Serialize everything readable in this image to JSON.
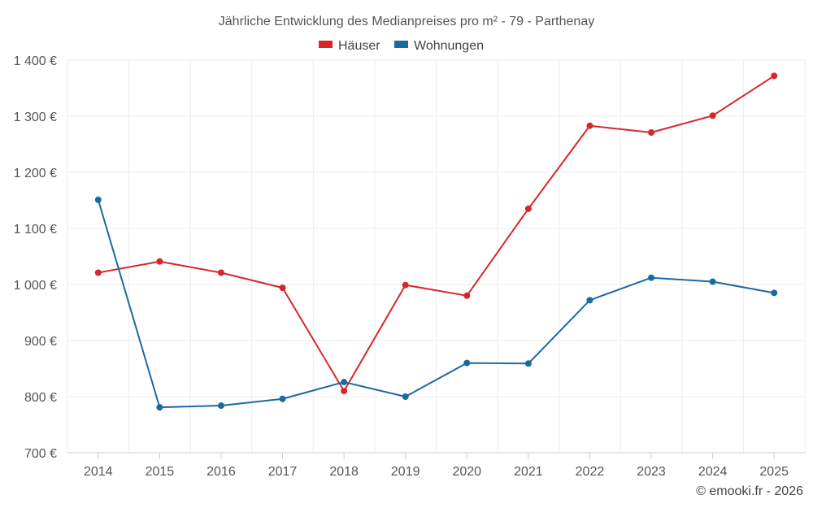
{
  "chart_data": {
    "type": "line",
    "title": "Jährliche Entwicklung des Medianpreises pro m² - 79 - Parthenay",
    "categories": [
      "2014",
      "2015",
      "2016",
      "2017",
      "2018",
      "2019",
      "2020",
      "2021",
      "2022",
      "2023",
      "2024",
      "2025"
    ],
    "series": [
      {
        "name": "Häuser",
        "color": "#d62728",
        "values": [
          1021,
          1041,
          1021,
          994,
          810,
          999,
          980,
          1135,
          1283,
          1271,
          1301,
          1372
        ]
      },
      {
        "name": "Wohnungen",
        "color": "#1a6aa0",
        "values": [
          1151,
          781,
          784,
          796,
          826,
          800,
          860,
          859,
          972,
          1012,
          1005,
          985
        ]
      }
    ],
    "ylim": [
      700,
      1400
    ],
    "yticks": [
      700,
      800,
      900,
      1000,
      1100,
      1200,
      1300,
      1400
    ],
    "ytick_labels": [
      "700 €",
      "800 €",
      "900 €",
      "1 000 €",
      "1 100 €",
      "1 200 €",
      "1 300 €",
      "1 400 €"
    ],
    "xlabel": "",
    "ylabel": "",
    "grid": true,
    "legend_position": "top-center"
  },
  "credit": "© emooki.fr - 2026"
}
